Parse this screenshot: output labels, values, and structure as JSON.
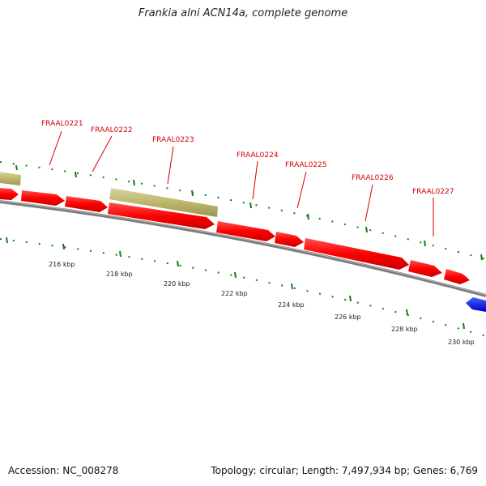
{
  "title": "Frankia alni ACN14a, complete genome",
  "accession": "Accession: NC_008278",
  "summary": "Topology: circular; Length: 7,497,934 bp; Genes: 6,769",
  "colors": {
    "backbone": "#7a7a7a",
    "cds": "#ff0000",
    "cds_reverse": "#0000ff",
    "rna": "#bdb76b",
    "ticks": "#1a7a1a",
    "gene_label": "#d40000"
  },
  "scale_labels": [
    "216 kbp",
    "218 kbp",
    "220 kbp",
    "222 kbp",
    "224 kbp",
    "226 kbp",
    "228 kbp",
    "230 kbp"
  ],
  "genes": [
    {
      "label": "FRAAL0221"
    },
    {
      "label": "FRAAL0222"
    },
    {
      "label": "FRAAL0223"
    },
    {
      "label": "FRAAL0224"
    },
    {
      "label": "FRAAL0225"
    },
    {
      "label": "FRAAL0226"
    },
    {
      "label": "FRAAL0227"
    }
  ]
}
